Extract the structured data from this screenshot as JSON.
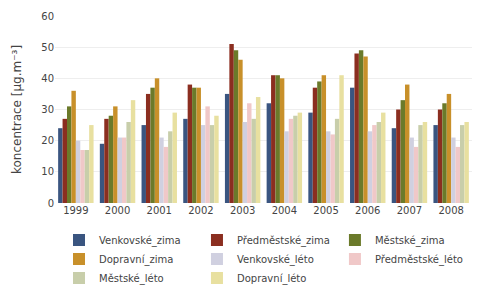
{
  "chart_data": {
    "type": "bar",
    "categories": [
      "1999",
      "2000",
      "2001",
      "2002",
      "2003",
      "2004",
      "2005",
      "2006",
      "2007",
      "2008"
    ],
    "series": [
      {
        "name": "Venkovské_zima",
        "color": "#3a5580",
        "values": [
          24,
          19,
          25,
          27,
          35,
          32,
          29,
          37,
          24,
          25
        ]
      },
      {
        "name": "Předměstské_zima",
        "color": "#8b2e20",
        "values": [
          27,
          27,
          35,
          38,
          51,
          41,
          37,
          48,
          30,
          30
        ]
      },
      {
        "name": "Městské_zima",
        "color": "#6b7a2a",
        "values": [
          31,
          28,
          37,
          37,
          49,
          41,
          39,
          49,
          33,
          32
        ]
      },
      {
        "name": "Dopravní_zima",
        "color": "#c8902a",
        "values": [
          36,
          31,
          40,
          37,
          46,
          40,
          41,
          47,
          38,
          35
        ]
      },
      {
        "name": "Venkovské_léto",
        "color": "#d0d0e0",
        "values": [
          20,
          21,
          21,
          25,
          26,
          23,
          23,
          23,
          21,
          21
        ]
      },
      {
        "name": "Předměstské_léto",
        "color": "#f0c8c8",
        "values": [
          17,
          21,
          18,
          31,
          32,
          27,
          22,
          25,
          18,
          18
        ]
      },
      {
        "name": "Městské_léto",
        "color": "#c8ceaa",
        "values": [
          17,
          26,
          23,
          25,
          27,
          28,
          27,
          26,
          25,
          25
        ]
      },
      {
        "name": "Dopravní_léto",
        "color": "#e8e0a0",
        "values": [
          25,
          33,
          29,
          28,
          34,
          29,
          41,
          29,
          26,
          26
        ]
      }
    ],
    "ylabel": "koncentrace [μg.m⁻³]",
    "ylim": [
      0,
      60
    ],
    "yticks": [
      0,
      10,
      20,
      30,
      40,
      50,
      60
    ],
    "grid": true,
    "legend": "bottom"
  }
}
